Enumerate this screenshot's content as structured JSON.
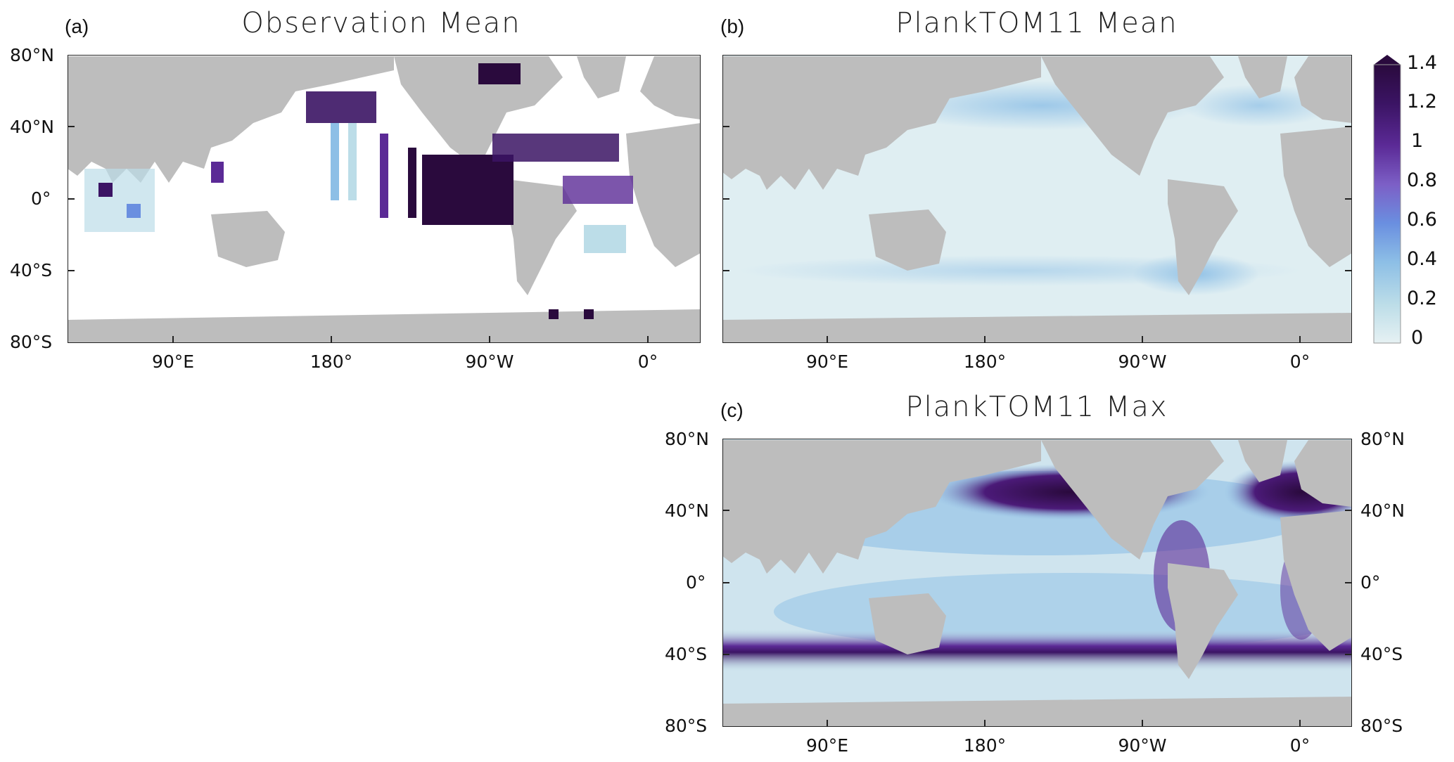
{
  "panels": [
    {
      "letter": "(a)",
      "title": "Observation Mean"
    },
    {
      "letter": "(b)",
      "title": "PlankTOM11 Mean"
    },
    {
      "letter": "(c)",
      "title": "PlankTOM11 Max"
    }
  ],
  "lat_labels": [
    "80°N",
    "40°N",
    "0°",
    "40°S",
    "80°S"
  ],
  "lon_labels": [
    "90°E",
    "180°",
    "90°W",
    "0°"
  ],
  "colorbar": {
    "ticks": [
      "1.4",
      "1.2",
      "1",
      "0.8",
      "0.6",
      "0.4",
      "0.2",
      "0"
    ],
    "range": [
      0,
      1.4
    ],
    "extend": "max",
    "colors": [
      "#e6f1f3",
      "#bcdde8",
      "#8dbfe6",
      "#6a8fe0",
      "#7c5fc6",
      "#5b2a96",
      "#3b1464",
      "#2a0a3d"
    ]
  },
  "map_colors": {
    "land": "#bdbdbd",
    "missing": "#ffffff",
    "ocean_low": "#dfeef2"
  }
}
